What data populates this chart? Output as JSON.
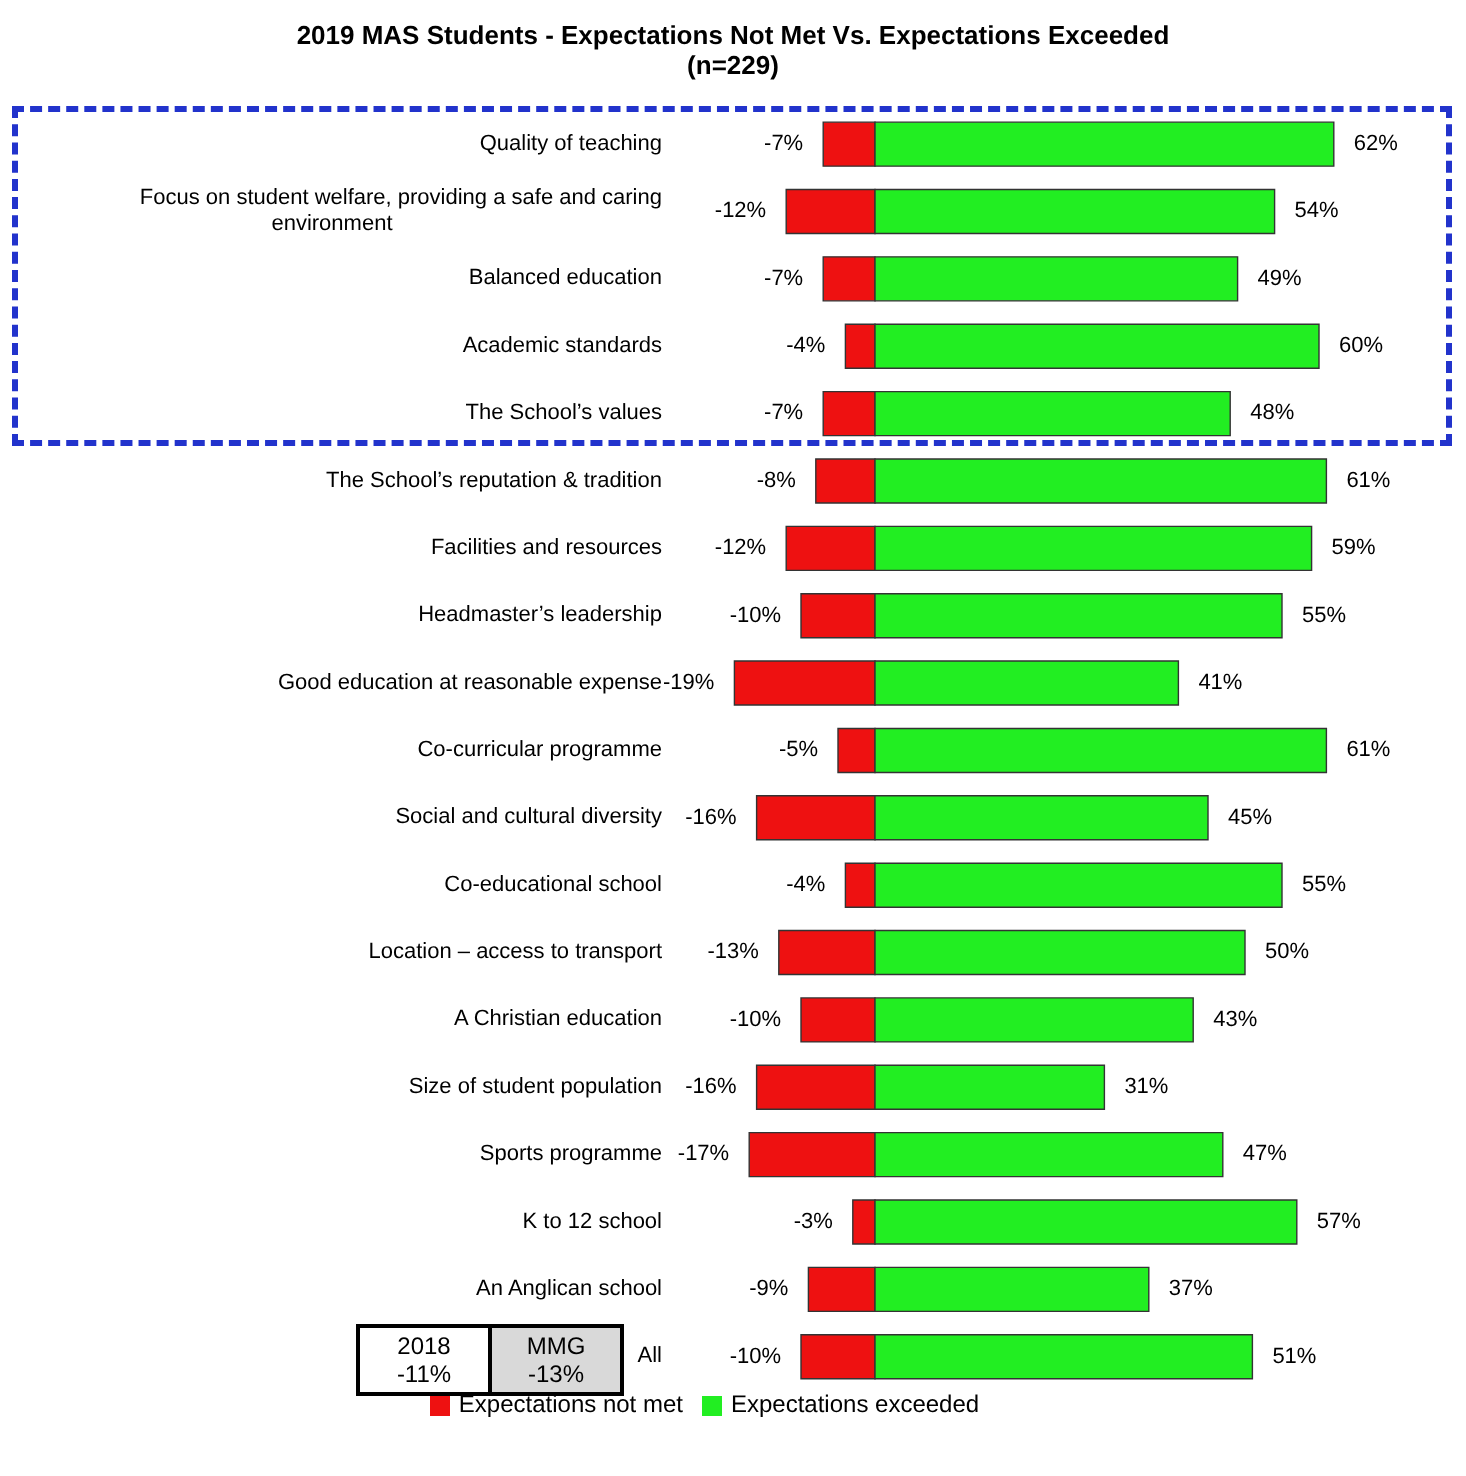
{
  "chart_data": {
    "type": "bar",
    "orientation": "horizontal",
    "stacked": true,
    "title": "2019 MAS Students - Expectations Not Met Vs. Expectations Exceeded",
    "subtitle": "(n=229)",
    "categories": [
      "Quality of teaching",
      "Focus on student welfare, providing  a safe and caring environment",
      "Balanced education",
      "Academic standards",
      "The School’s values",
      "The School’s reputation & tradition",
      "Facilities and resources",
      "Headmaster’s leadership",
      "Good education at reasonable expense",
      "Co-curricular programme",
      "Social and cultural diversity",
      "Co-educational school",
      "Location – access to transport",
      "A Christian education",
      "Size of student population",
      "Sports programme",
      "K to 12 school",
      "An Anglican school",
      "All"
    ],
    "series": [
      {
        "name": "Expectations not met",
        "color": "#ee1111",
        "values": [
          -7,
          -12,
          -7,
          -4,
          -7,
          -8,
          -12,
          -10,
          -19,
          -5,
          -16,
          -4,
          -13,
          -10,
          -16,
          -17,
          -3,
          -9,
          -10
        ],
        "value_labels": [
          "-7%",
          "-12%",
          "-7%",
          "-4%",
          "-7%",
          "-8%",
          "-12%",
          "-10%",
          "-19%",
          "-5%",
          "-16%",
          "-4%",
          "-13%",
          "-10%",
          "-16%",
          "-17%",
          "-3%",
          "-9%",
          "-10%"
        ]
      },
      {
        "name": "Expectations exceeded",
        "color": "#22ee22",
        "values": [
          62,
          54,
          49,
          60,
          48,
          61,
          59,
          55,
          41,
          61,
          45,
          55,
          50,
          43,
          31,
          47,
          57,
          37,
          51
        ],
        "value_labels": [
          "62%",
          "54%",
          "49%",
          "60%",
          "48%",
          "61%",
          "59%",
          "55%",
          "41%",
          "61%",
          "45%",
          "55%",
          "50%",
          "43%",
          "31%",
          "47%",
          "57%",
          "37%",
          "51%"
        ]
      }
    ],
    "tick_labels": "y",
    "legend": "bottom",
    "annotations": [
      "2018\n-11%",
      "MMG\n-13%"
    ]
  }
}
